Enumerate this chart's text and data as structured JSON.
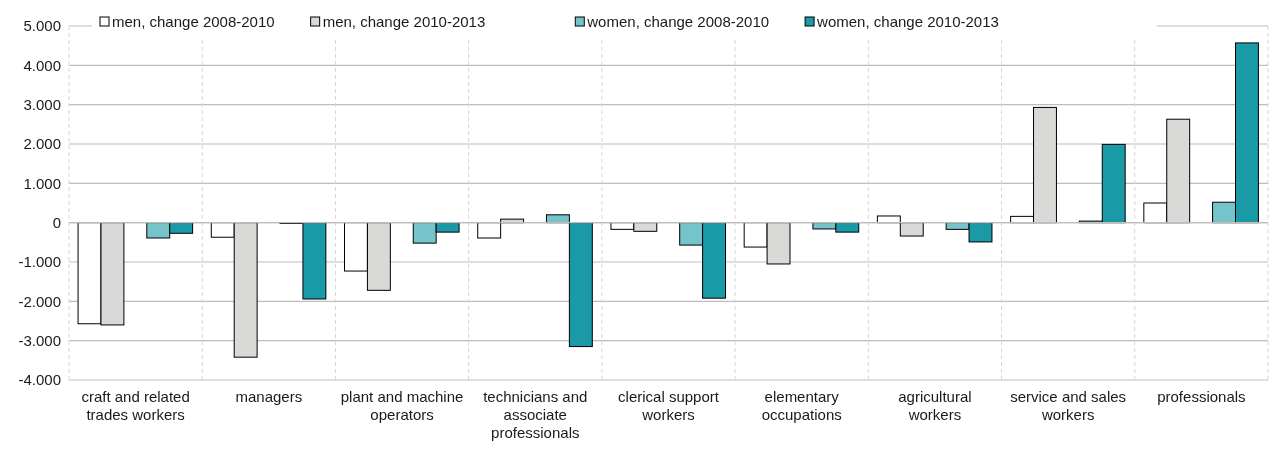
{
  "chart_data": {
    "type": "bar",
    "categories": [
      "craft and related trades workers",
      "managers",
      "plant and machine operators",
      "technicians and associate professionals",
      "clerical support workers",
      "elementary occupations",
      "agricultural workers",
      "service and sales workers",
      "professionals"
    ],
    "series": [
      {
        "name": "men, change 2008-2010",
        "color": "#ffffff",
        "values": [
          -2570,
          -370,
          -1230,
          -390,
          -170,
          -620,
          170,
          160,
          500
        ]
      },
      {
        "name": "men, change 2010-2013",
        "color": "#d9d9d7",
        "values": [
          -2600,
          -3420,
          -1720,
          90,
          -220,
          -1050,
          -340,
          2930,
          2630
        ]
      },
      {
        "name": "women, change 2008-2010",
        "color": "#75c4cb",
        "values": [
          -390,
          -20,
          -520,
          200,
          -570,
          -160,
          -170,
          40,
          520
        ]
      },
      {
        "name": "women, change 2010-2013",
        "color": "#1a9aa6",
        "values": [
          -270,
          -1940,
          -240,
          -3150,
          -1920,
          -240,
          -490,
          1990,
          4570
        ]
      }
    ],
    "ylim": [
      -4000,
      5000
    ],
    "yticks": [
      {
        "value": -4000,
        "label": "-4.000"
      },
      {
        "value": -3000,
        "label": "-3.000"
      },
      {
        "value": -2000,
        "label": "-2.000"
      },
      {
        "value": -1000,
        "label": "-1.000"
      },
      0,
      {
        "value": 1000,
        "label": "1.000"
      },
      {
        "value": 2000,
        "label": "2.000"
      },
      {
        "value": 3000,
        "label": "3.000"
      },
      {
        "value": 4000,
        "label": "4.000"
      },
      {
        "value": 5000,
        "label": "5.000"
      }
    ],
    "grid": "y",
    "legend": "top"
  }
}
